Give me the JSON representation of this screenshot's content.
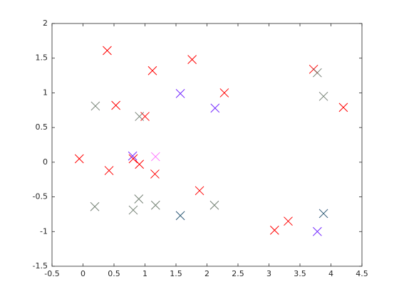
{
  "chart_data": {
    "type": "scatter",
    "xlim": [
      -0.5,
      4.5
    ],
    "ylim": [
      -1.5,
      2
    ],
    "xticks": [
      -0.5,
      0,
      0.5,
      1,
      1.5,
      2,
      2.5,
      3,
      3.5,
      4,
      4.5
    ],
    "yticks": [
      -1.5,
      -1,
      -0.5,
      0,
      0.5,
      1,
      1.5,
      2
    ],
    "grid": false,
    "box": true,
    "marker": "x",
    "series": [
      {
        "color": "#ff0000",
        "x": [
          -0.06,
          0.39,
          0.42,
          0.53,
          0.81,
          0.91,
          1.0,
          1.12,
          1.16,
          1.76,
          1.88,
          2.28,
          3.09,
          3.31,
          3.72,
          4.2
        ],
        "values": [
          0.05,
          1.61,
          -0.12,
          0.82,
          0.05,
          -0.03,
          0.66,
          1.32,
          -0.17,
          1.48,
          -0.41,
          1.0,
          -0.98,
          -0.85,
          1.34,
          0.79
        ]
      },
      {
        "color": "#ff00ff",
        "x": [
          0.2,
          0.91,
          1.57,
          2.13,
          0.8,
          1.17,
          0.19,
          0.81,
          0.9,
          1.17,
          1.57,
          2.12,
          3.78,
          3.88,
          3.78,
          3.88
        ],
        "values": [
          0.81,
          0.66,
          0.99,
          0.78,
          0.09,
          0.08,
          -0.64,
          -0.69,
          -0.53,
          -0.62,
          -0.77,
          -0.62,
          1.29,
          0.95,
          -1.0,
          -0.74
        ]
      },
      {
        "color": "#0000ff",
        "x": [
          1.57,
          2.13,
          0.8,
          1.57,
          3.78,
          3.88
        ],
        "values": [
          0.99,
          0.78,
          0.09,
          -0.77,
          -1.0,
          -0.74
        ]
      },
      {
        "color": "#00a000",
        "x": [
          0.2,
          0.91,
          0.19,
          0.81,
          0.9,
          1.17,
          1.57,
          2.12,
          3.78,
          3.88,
          3.88
        ],
        "values": [
          0.81,
          0.66,
          -0.64,
          -0.69,
          -0.53,
          -0.62,
          -0.77,
          -0.62,
          1.29,
          0.95,
          -0.74
        ]
      }
    ]
  }
}
